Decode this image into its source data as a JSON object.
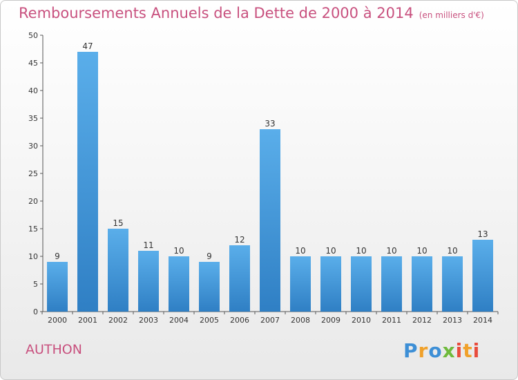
{
  "chart_data": {
    "type": "bar",
    "title": "Remboursements Annuels de la Dette de 2000 à 2014",
    "unit_note": "(en milliers d'€)",
    "categories": [
      "2000",
      "2001",
      "2002",
      "2003",
      "2004",
      "2005",
      "2006",
      "2007",
      "2008",
      "2009",
      "2010",
      "2011",
      "2012",
      "2013",
      "2014"
    ],
    "values": [
      9,
      47,
      15,
      11,
      10,
      9,
      12,
      33,
      10,
      10,
      10,
      10,
      10,
      10,
      13
    ],
    "ylim": [
      0,
      50
    ],
    "yticks": [
      0,
      5,
      10,
      15,
      20,
      25,
      30,
      35,
      40,
      45,
      50
    ],
    "grid": false,
    "legend": "none",
    "bar_color": "#3d8fd6"
  },
  "place_name": "AUTHON",
  "logo": {
    "text": "Proxiti",
    "colors": [
      "#3d8fd6",
      "#f0a12b",
      "#6fba3c",
      "#e84c3d"
    ]
  }
}
